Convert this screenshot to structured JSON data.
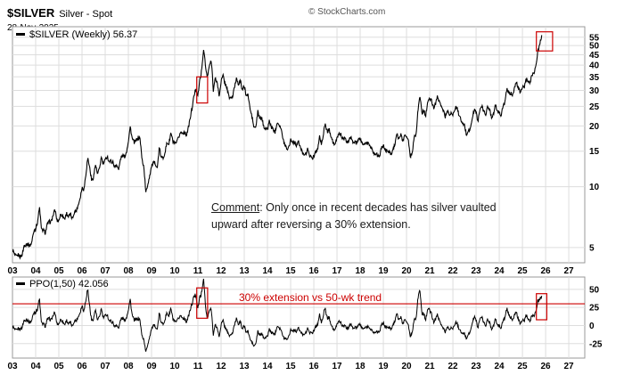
{
  "header": {
    "symbol": "$SILVER",
    "description": "Silver - Spot",
    "date": "28-Nov-2025",
    "watermark": "© StockCharts.com"
  },
  "comment": {
    "label": "Comment",
    "text": ": Only once in recent decades has silver vaulted upward after reversing a 30% extension."
  },
  "colors": {
    "accent_red": "#cc0000",
    "series": "#000000",
    "grid": "#dddddd",
    "border": "#999999",
    "axis_text": "#000000"
  },
  "chart_data": [
    {
      "type": "line",
      "panel": "price",
      "legend": "$SILVER (Weekly) 56.37",
      "series_name": "$SILVER (Weekly)",
      "last_value": 56.37,
      "scale": "log",
      "x_start_year": 2003,
      "interval": "monthly-approximation-of-weekly",
      "xlim": [
        2003,
        2027.69
      ],
      "ylim": [
        4.2,
        62
      ],
      "yticks": [
        5,
        10,
        15,
        20,
        25,
        30,
        35,
        40,
        45,
        50,
        55
      ],
      "xticklabels": [
        "03",
        "04",
        "05",
        "06",
        "07",
        "08",
        "09",
        "10",
        "11",
        "12",
        "13",
        "14",
        "15",
        "16",
        "17",
        "18",
        "19",
        "20",
        "21",
        "22",
        "23",
        "24",
        "25",
        "26",
        "27"
      ],
      "monthly_close": [
        4.9,
        4.6,
        4.5,
        4.6,
        4.5,
        4.6,
        5.1,
        5.2,
        5.2,
        5.1,
        5.3,
        6.0,
        6.2,
        6.7,
        7.9,
        6.1,
        6.1,
        5.9,
        6.5,
        6.7,
        6.7,
        7.2,
        7.7,
        6.8,
        6.8,
        7.3,
        7.2,
        6.9,
        7.4,
        7.1,
        7.3,
        6.9,
        7.5,
        7.6,
        8.1,
        8.8,
        9.9,
        9.7,
        11.6,
        13.9,
        12.4,
        10.7,
        11.2,
        12.9,
        11.5,
        12.2,
        14.0,
        12.9,
        13.5,
        14.2,
        13.3,
        13.4,
        13.2,
        12.5,
        12.9,
        12.1,
        13.8,
        14.3,
        14.1,
        14.8,
        16.9,
        19.8,
        17.2,
        16.6,
        16.9,
        17.5,
        17.4,
        13.7,
        12.5,
        9.3,
        10.2,
        11.3,
        12.6,
        13.1,
        13.1,
        12.3,
        15.6,
        13.9,
        13.9,
        14.9,
        16.5,
        16.3,
        18.5,
        16.8,
        16.2,
        16.5,
        17.5,
        18.6,
        18.4,
        18.7,
        18.0,
        19.4,
        21.8,
        24.6,
        28.2,
        30.9,
        28.0,
        33.9,
        37.9,
        48.6,
        38.3,
        34.8,
        40.1,
        41.8,
        30.0,
        34.3,
        32.8,
        27.9,
        33.3,
        35.5,
        32.5,
        31.0,
        27.8,
        27.5,
        27.9,
        31.4,
        34.6,
        32.3,
        33.3,
        30.2,
        31.4,
        28.4,
        28.3,
        24.2,
        22.2,
        19.6,
        19.7,
        23.5,
        21.7,
        21.9,
        20.0,
        19.4,
        19.1,
        21.2,
        19.8,
        19.2,
        18.7,
        21.0,
        20.4,
        19.5,
        17.1,
        16.2,
        15.5,
        15.6,
        17.2,
        16.6,
        16.6,
        16.1,
        16.7,
        15.7,
        14.8,
        14.6,
        14.5,
        15.5,
        14.1,
        13.8,
        14.2,
        14.9,
        15.4,
        17.8,
        16.0,
        18.6,
        20.3,
        18.7,
        19.2,
        17.8,
        16.5,
        15.9,
        17.5,
        18.3,
        18.2,
        17.2,
        17.3,
        16.6,
        16.8,
        17.6,
        16.7,
        16.7,
        16.4,
        16.9,
        17.3,
        16.4,
        16.3,
        16.4,
        16.4,
        16.1,
        15.5,
        14.5,
        14.7,
        14.3,
        14.2,
        15.5,
        16.0,
        15.2,
        15.1,
        14.9,
        14.6,
        15.3,
        16.3,
        18.4,
        17.0,
        18.1,
        17.0,
        17.8,
        18.0,
        16.7,
        14.0,
        14.9,
        17.9,
        18.2,
        24.2,
        28.1,
        23.2,
        23.7,
        22.6,
        26.4,
        27.0,
        26.7,
        24.4,
        25.9,
        28.0,
        26.1,
        25.5,
        23.9,
        22.1,
        23.9,
        22.8,
        23.3,
        22.4,
        24.4,
        24.8,
        23.0,
        21.6,
        20.3,
        20.2,
        18.0,
        19.0,
        19.2,
        21.8,
        24.0,
        23.6,
        20.9,
        24.1,
        25.0,
        23.6,
        22.8,
        24.8,
        24.2,
        22.2,
        22.9,
        25.3,
        23.8,
        23.2,
        22.7,
        25.1,
        26.3,
        30.4,
        29.1,
        28.9,
        28.8,
        31.2,
        32.7,
        30.6,
        28.9,
        31.3,
        31.2,
        34.1,
        32.8,
        33.0,
        36.1,
        36.7,
        39.7,
        46.7,
        50.5,
        56.37
      ],
      "annotation_boxes": [
        {
          "x1": 2010.95,
          "x2": 2011.42,
          "y1": 26,
          "y2": 35
        },
        {
          "x1": 2025.6,
          "x2": 2026.3,
          "y1": 47,
          "y2": 58.5
        }
      ]
    },
    {
      "type": "line",
      "panel": "ppo",
      "legend": "PPO(1,50) 42.056",
      "series_name": "PPO(1,50)",
      "last_value": 42.056,
      "derived_from": "price",
      "formula": "100*(close-ema50)/ema50, weekly",
      "ylim": [
        -45,
        67
      ],
      "yticks": [
        50,
        25,
        0,
        -25
      ],
      "hline": {
        "value": 30,
        "label": "30% extension vs 50-wk trend"
      },
      "annotation_boxes": [
        {
          "x1": 2010.95,
          "x2": 2011.42,
          "y1": 10,
          "y2": 52
        },
        {
          "x1": 2025.6,
          "x2": 2026.05,
          "y1": 8,
          "y2": 44
        }
      ]
    }
  ]
}
